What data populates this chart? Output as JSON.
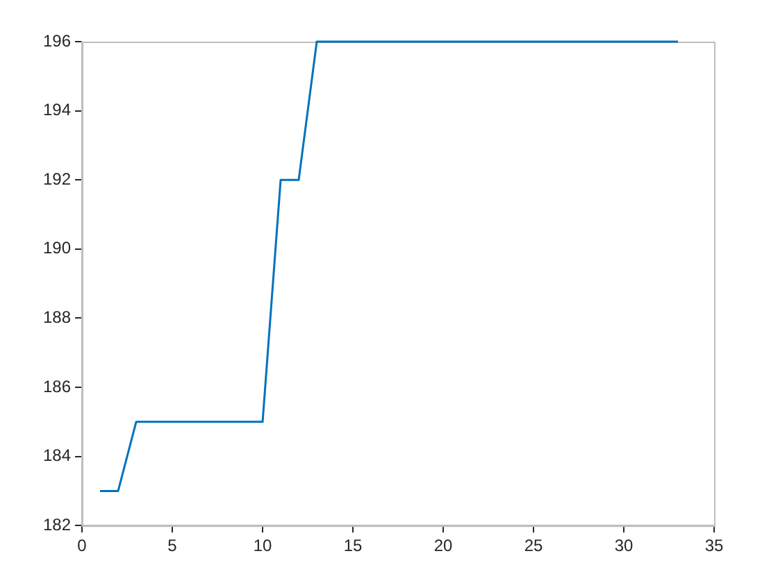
{
  "chart_data": {
    "type": "line",
    "x": [
      1,
      2,
      3,
      4,
      5,
      6,
      7,
      8,
      9,
      10,
      11,
      12,
      13,
      14,
      15,
      16,
      17,
      18,
      19,
      20,
      21,
      22,
      23,
      24,
      25,
      26,
      27,
      28,
      29,
      30,
      31,
      32,
      33
    ],
    "series": [
      {
        "color": "#0072bd",
        "values": [
          183,
          183,
          185,
          185,
          185,
          185,
          185,
          185,
          185,
          185,
          192,
          192,
          196,
          196,
          196,
          196,
          196,
          196,
          196,
          196,
          196,
          196,
          196,
          196,
          196,
          196,
          196,
          196,
          196,
          196,
          196,
          196,
          196
        ]
      }
    ],
    "xlim": [
      0,
      35
    ],
    "xticks": [
      0,
      5,
      10,
      15,
      20,
      25,
      30,
      35
    ],
    "ylim": [
      182,
      196
    ],
    "yticks": [
      182,
      184,
      186,
      188,
      190,
      192,
      194,
      196
    ],
    "marker": "none",
    "line_style": "solid",
    "legend": false
  }
}
